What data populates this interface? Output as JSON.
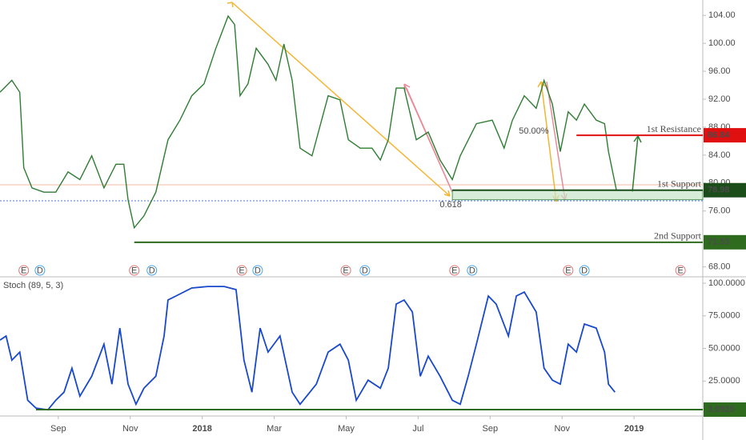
{
  "chart_data": [
    {
      "type": "line",
      "x": [
        -0.62,
        -0.29,
        -0.07,
        0.04,
        0.27,
        0.6,
        0.93,
        1.27,
        1.6,
        1.93,
        2.27,
        2.6,
        2.82,
        2.94,
        3.11,
        3.38,
        3.71,
        4.05,
        4.38,
        4.71,
        5.05,
        5.38,
        5.72,
        5.9,
        6.05,
        6.27,
        6.5,
        6.83,
        7.05,
        7.27,
        7.5,
        7.72,
        8.05,
        8.5,
        8.83,
        9.06,
        9.39,
        9.72,
        9.95,
        10.17,
        10.39,
        10.61,
        10.95,
        11.28,
        11.61,
        11.95,
        12.17,
        12.62,
        13.06,
        13.39,
        13.62,
        13.95,
        14.28,
        14.5,
        14.73,
        14.95,
        15.17,
        15.4,
        15.62,
        15.95,
        16.18,
        16.29,
        16.51
      ],
      "series": [
        {
          "color": "#2e7d32",
          "values": [
            93.0,
            94.7,
            93.0,
            82.2,
            79.3,
            78.7,
            78.7,
            81.6,
            80.5,
            83.9,
            79.3,
            82.7,
            82.7,
            77.6,
            73.6,
            75.3,
            78.7,
            86.2,
            89.0,
            92.5,
            94.2,
            99.3,
            103.9,
            102.7,
            92.5,
            94.2,
            99.3,
            97.0,
            94.7,
            99.9,
            94.7,
            85.0,
            83.9,
            92.5,
            91.9,
            86.2,
            85.0,
            85.0,
            83.3,
            86.2,
            93.6,
            93.6,
            86.2,
            87.3,
            83.3,
            80.5,
            83.9,
            88.5,
            89.0,
            85.0,
            89.0,
            92.5,
            90.7,
            94.7,
            91.3,
            84.5,
            90.2,
            89.0,
            91.3,
            89.0,
            88.5,
            84.5,
            79.0
          ]
        }
      ],
      "xlim": [
        -0.62,
        18.91
      ],
      "ylim": [
        66.7,
        106.2
      ],
      "yticks": [
        {
          "value": 68,
          "label": "68.00"
        },
        {
          "value": 76,
          "label": "76.00"
        },
        {
          "value": 80,
          "label": "80.00"
        },
        {
          "value": 84,
          "label": "84.00"
        },
        {
          "value": 88,
          "label": "88.00"
        },
        {
          "value": 92,
          "label": "92.00"
        },
        {
          "value": 96,
          "label": "96.00"
        },
        {
          "value": 100,
          "label": "100.00"
        },
        {
          "value": 104,
          "label": "104.00"
        }
      ],
      "levels": [
        {
          "label": "1st Resistance",
          "value": 86.84,
          "from": 15.4,
          "color": "#e01010"
        },
        {
          "label": "1st Support",
          "value": 78.98,
          "from": 11.95,
          "color": "#1b4d1b"
        },
        {
          "label": "2nd Support",
          "value": 71.53,
          "from": 3.11,
          "color": "#2e6b1f"
        }
      ],
      "fib_labels": [
        {
          "label": "50.00%",
          "x": 13.8,
          "value": 87.4
        },
        {
          "label": "0.618",
          "x": 11.6,
          "value": 76.9
        }
      ],
      "events": [
        {
          "label": "E",
          "x": 0.04
        },
        {
          "label": "D",
          "x": 0.49
        },
        {
          "label": "E",
          "x": 3.11
        },
        {
          "label": "D",
          "x": 3.6
        },
        {
          "label": "E",
          "x": 6.1
        },
        {
          "label": "D",
          "x": 6.54
        },
        {
          "label": "E",
          "x": 8.99
        },
        {
          "label": "D",
          "x": 9.52
        },
        {
          "label": "E",
          "x": 12.01
        },
        {
          "label": "D",
          "x": 12.5
        },
        {
          "label": "E",
          "x": 15.17
        },
        {
          "label": "D",
          "x": 15.62
        },
        {
          "label": "E",
          "x": 18.29
        }
      ]
    },
    {
      "type": "line",
      "title": "Stoch (89, 5, 3)",
      "x": [
        -0.62,
        -0.45,
        -0.29,
        -0.07,
        0.15,
        0.38,
        0.71,
        0.93,
        1.16,
        1.38,
        1.6,
        1.93,
        2.27,
        2.49,
        2.71,
        2.94,
        3.16,
        3.38,
        3.71,
        3.94,
        4.05,
        4.27,
        4.71,
        5.16,
        5.61,
        5.94,
        6.16,
        6.38,
        6.61,
        6.83,
        7.16,
        7.5,
        7.72,
        8.17,
        8.5,
        8.83,
        9.06,
        9.28,
        9.61,
        9.95,
        10.17,
        10.39,
        10.61,
        10.84,
        11.06,
        11.28,
        11.61,
        11.95,
        12.17,
        12.39,
        12.62,
        12.95,
        13.17,
        13.51,
        13.73,
        13.95,
        14.28,
        14.5,
        14.73,
        14.95,
        15.17,
        15.4,
        15.62,
        15.95,
        16.18,
        16.29,
        16.47
      ],
      "series": [
        {
          "color": "#1848cc",
          "values": [
            56.4,
            59.5,
            41.0,
            47.2,
            10.3,
            4.2,
            2.9,
            10.3,
            16.5,
            34.9,
            13.4,
            28.7,
            53.3,
            22.6,
            65.6,
            22.6,
            7.2,
            19.5,
            28.7,
            59.5,
            87.1,
            90.2,
            96.3,
            97.5,
            97.5,
            95.1,
            41.0,
            16.5,
            65.6,
            47.2,
            59.5,
            16.5,
            7.2,
            22.6,
            47.2,
            53.3,
            41.0,
            10.3,
            25.7,
            19.5,
            34.9,
            84.0,
            87.1,
            77.9,
            28.7,
            44.1,
            28.7,
            10.3,
            7.2,
            28.7,
            53.3,
            90.2,
            84.0,
            59.5,
            90.2,
            93.2,
            77.9,
            34.9,
            25.7,
            22.6,
            53.3,
            47.2,
            68.7,
            65.6,
            47.2,
            22.6,
            16.5
          ]
        }
      ],
      "xlim": [
        -0.62,
        18.91
      ],
      "ylim": [
        -1.8,
        104.3
      ],
      "yticks": [
        {
          "value": 25,
          "label": "25.0000"
        },
        {
          "value": 50,
          "label": "50.0000"
        },
        {
          "value": 75,
          "label": "75.0000"
        },
        {
          "value": 100,
          "label": "100.0000"
        }
      ],
      "levels": [
        {
          "value": 3.0925,
          "from": 0.38,
          "color": "#2e6b1f"
        }
      ],
      "xticks": [
        {
          "value": 1,
          "label": "Sep"
        },
        {
          "value": 3,
          "label": "Nov"
        },
        {
          "value": 5,
          "label": "2018"
        },
        {
          "value": 7,
          "label": "Mar"
        },
        {
          "value": 9,
          "label": "May"
        },
        {
          "value": 11,
          "label": "Jul"
        },
        {
          "value": 13,
          "label": "Sep"
        },
        {
          "value": 15,
          "label": "Nov"
        },
        {
          "value": 17,
          "label": "2019"
        }
      ]
    }
  ]
}
